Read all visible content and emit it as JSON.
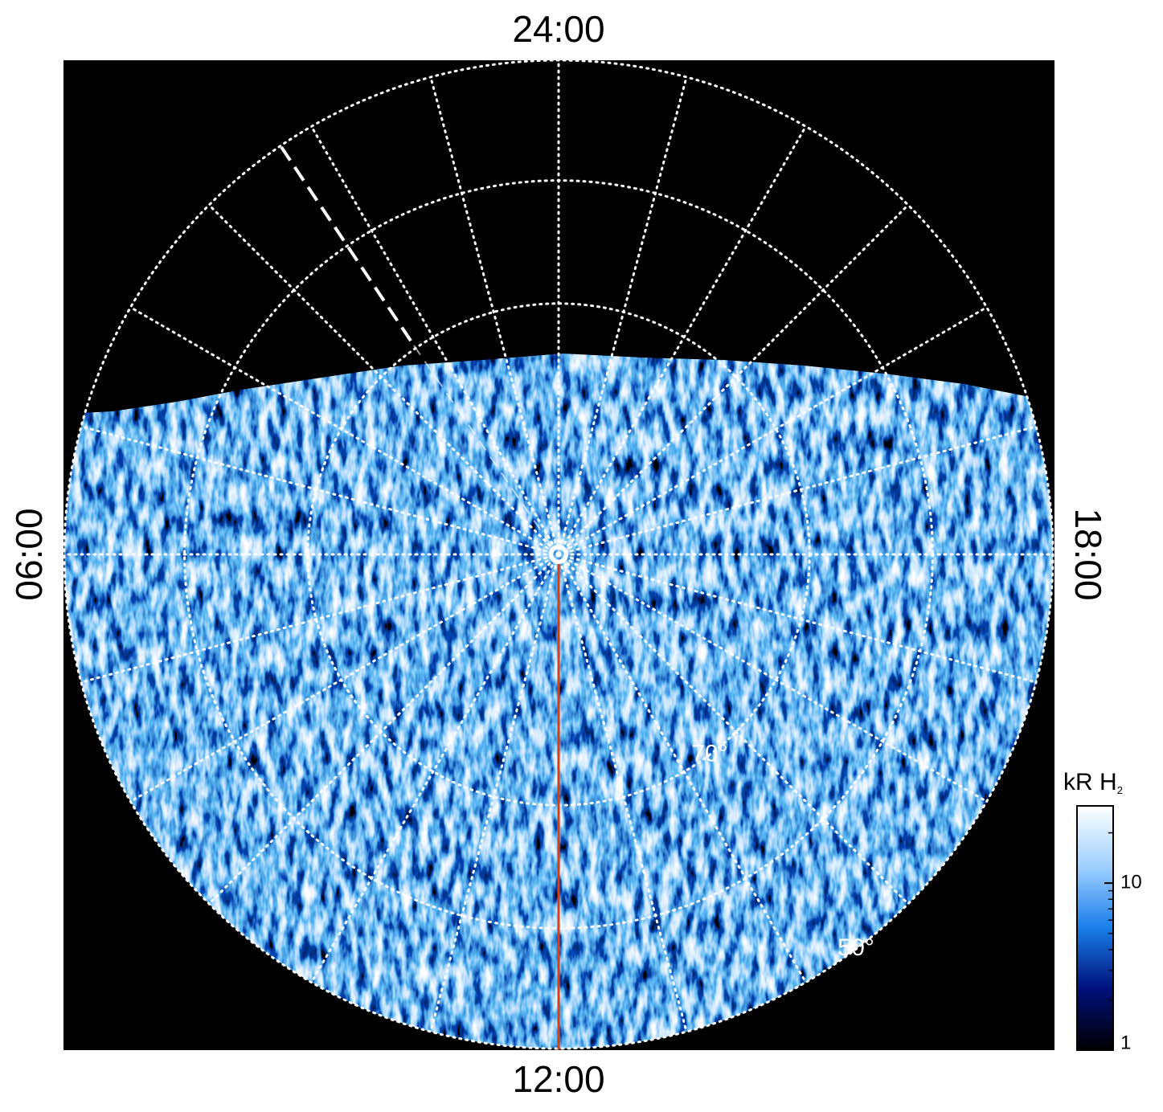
{
  "chart_data": {
    "type": "polar-image",
    "local_time_labels": {
      "top": "24:00",
      "bottom": "12:00",
      "left": "06:00",
      "right": "18:00"
    },
    "latitude_grid": [
      70,
      60,
      50
    ],
    "latitude_labels": [
      {
        "value": 70,
        "label": "70°"
      },
      {
        "value": 50,
        "label": "50°"
      }
    ],
    "colormap": [
      "#000000",
      "#00107a",
      "#1a7de8",
      "#9fd0ff",
      "#ffffff"
    ],
    "colorbar": {
      "label": "kR H",
      "label_subscript": "2",
      "clim": [
        1,
        29
      ],
      "log": true,
      "ticks": [
        1,
        10
      ]
    }
  }
}
